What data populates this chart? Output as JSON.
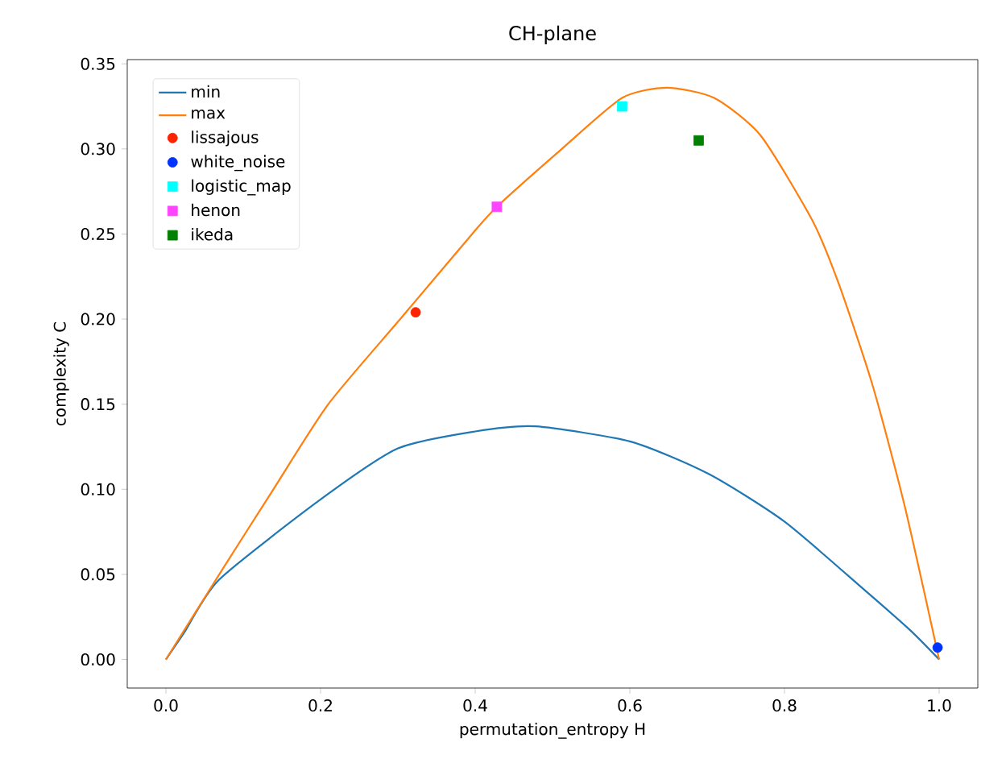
{
  "chart_data": {
    "type": "line",
    "title": "CH-plane",
    "xlabel": "permutation_entropy H",
    "ylabel": "complexity C",
    "xlim": [
      -0.05,
      1.05
    ],
    "ylim": [
      -0.0168,
      0.3525
    ],
    "xticks": [
      {
        "value": 0,
        "label": "0.0"
      },
      {
        "value": 0.2,
        "label": "0.2"
      },
      {
        "value": 0.4,
        "label": "0.4"
      },
      {
        "value": 0.6,
        "label": "0.6"
      },
      {
        "value": 0.8,
        "label": "0.8"
      },
      {
        "value": 1,
        "label": "1.0"
      }
    ],
    "yticks": [
      {
        "value": 0,
        "label": "0.00"
      },
      {
        "value": 0.05,
        "label": "0.05"
      },
      {
        "value": 0.1,
        "label": "0.10"
      },
      {
        "value": 0.15,
        "label": "0.15"
      },
      {
        "value": 0.2,
        "label": "0.20"
      },
      {
        "value": 0.25,
        "label": "0.25"
      },
      {
        "value": 0.3,
        "label": "0.30"
      },
      {
        "value": 0.35,
        "label": "0.35"
      }
    ],
    "grid": false,
    "legend": "top left",
    "series": [
      {
        "name": "min",
        "color": "#1f77b4",
        "x": [
          0,
          0.024,
          0.069,
          0.2,
          0.3,
          0.4,
          0.478,
          0.601,
          0.702,
          0.8,
          0.903,
          0.963,
          1.0
        ],
        "values": [
          0,
          0.016,
          0.047,
          0.094,
          0.124,
          0.134,
          0.137,
          0.128,
          0.109,
          0.081,
          0.041,
          0.017,
          0
        ]
      },
      {
        "name": "max",
        "color": "#ff7f0e",
        "x": [
          0,
          0.069,
          0.139,
          0.21,
          0.303,
          0.396,
          0.428,
          0.512,
          0.59,
          0.648,
          0.709,
          0.769,
          0.836,
          0.87,
          0.914,
          0.955,
          1.0
        ],
        "values": [
          0,
          0.05,
          0.1,
          0.15,
          0.2,
          0.25,
          0.266,
          0.3,
          0.33,
          0.336,
          0.33,
          0.308,
          0.258,
          0.221,
          0.161,
          0.091,
          0
        ]
      },
      {
        "name": "lissajous",
        "type": "scatter",
        "marker": "circle",
        "color": "#ff2200",
        "x": [
          0.323
        ],
        "values": [
          0.204
        ]
      },
      {
        "name": "white_noise",
        "type": "scatter",
        "marker": "circle",
        "color": "#0033ff",
        "x": [
          0.998
        ],
        "values": [
          0.007
        ]
      },
      {
        "name": "logistic_map",
        "type": "scatter",
        "marker": "square",
        "color": "#00ffff",
        "x": [
          0.59
        ],
        "values": [
          0.325
        ]
      },
      {
        "name": "henon",
        "type": "scatter",
        "marker": "square",
        "color": "#ff44ff",
        "x": [
          0.428
        ],
        "values": [
          0.266
        ]
      },
      {
        "name": "ikeda",
        "type": "scatter",
        "marker": "square",
        "color": "#008000",
        "x": [
          0.689
        ],
        "values": [
          0.305
        ]
      }
    ]
  }
}
